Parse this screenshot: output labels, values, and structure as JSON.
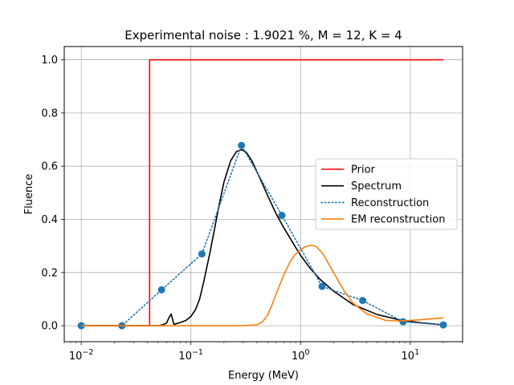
{
  "chart_data": {
    "type": "line",
    "title": "Experimental noise : 1.9021 %, M = 12, K = 4",
    "xlabel": "Energy (MeV)",
    "ylabel": "Fluence",
    "xscale": "log",
    "xlim": [
      0.007,
      30
    ],
    "ylim": [
      -0.06,
      1.05
    ],
    "x_ticks": [
      {
        "value": 0.01,
        "base": "10",
        "exp": "−2"
      },
      {
        "value": 0.1,
        "base": "10",
        "exp": "−1"
      },
      {
        "value": 1,
        "base": "10",
        "exp": "0"
      },
      {
        "value": 10,
        "base": "10",
        "exp": "1"
      }
    ],
    "y_ticks": [
      "0.0",
      "0.2",
      "0.4",
      "0.6",
      "0.8",
      "1.0"
    ],
    "grid": true,
    "legend_position": "center-right",
    "series": [
      {
        "name": "Prior",
        "color": "#ff0000",
        "style": "solid",
        "x": [
          0.01,
          0.042,
          0.042,
          20
        ],
        "y": [
          0,
          0,
          1.0,
          1.0
        ]
      },
      {
        "name": "Spectrum",
        "color": "#000000",
        "style": "solid",
        "x": [
          0.01,
          0.05,
          0.055,
          0.06,
          0.063,
          0.066,
          0.07,
          0.08,
          0.09,
          0.1,
          0.11,
          0.12,
          0.13,
          0.15,
          0.18,
          0.2,
          0.23,
          0.26,
          0.29,
          0.32,
          0.36,
          0.42,
          0.5,
          0.6,
          0.7,
          0.8,
          0.9,
          1.0,
          1.2,
          1.5,
          2.0,
          3.0,
          5.0,
          8.0,
          12.0,
          20.0
        ],
        "y": [
          0,
          0,
          0.003,
          0.01,
          0.03,
          0.044,
          0.005,
          0.012,
          0.02,
          0.035,
          0.06,
          0.1,
          0.16,
          0.28,
          0.45,
          0.54,
          0.62,
          0.655,
          0.662,
          0.652,
          0.62,
          0.56,
          0.49,
          0.42,
          0.37,
          0.33,
          0.295,
          0.265,
          0.22,
          0.175,
          0.13,
          0.08,
          0.042,
          0.022,
          0.012,
          0.003
        ]
      },
      {
        "name": "Reconstruction",
        "color": "#1f77b4",
        "style": "dotted",
        "markers": true,
        "x": [
          0.01,
          0.0235,
          0.054,
          0.126,
          0.289,
          0.676,
          1.57,
          3.68,
          8.6,
          20.0
        ],
        "y": [
          0.0,
          0.0,
          0.135,
          0.27,
          0.678,
          0.415,
          0.148,
          0.095,
          0.015,
          0.003
        ]
      },
      {
        "name": "EM reconstruction",
        "color": "#ff7f0e",
        "style": "solid",
        "x": [
          0.01,
          0.3,
          0.4,
          0.45,
          0.5,
          0.55,
          0.6,
          0.7,
          0.8,
          0.9,
          1.0,
          1.1,
          1.25,
          1.4,
          1.6,
          2.0,
          2.5,
          3.0,
          4.0,
          6.0,
          8.0,
          12.0,
          20.0
        ],
        "y": [
          0.0,
          0.0,
          0.003,
          0.015,
          0.04,
          0.08,
          0.12,
          0.19,
          0.24,
          0.27,
          0.285,
          0.297,
          0.303,
          0.297,
          0.27,
          0.2,
          0.13,
          0.085,
          0.045,
          0.02,
          0.018,
          0.022,
          0.03
        ]
      }
    ]
  }
}
